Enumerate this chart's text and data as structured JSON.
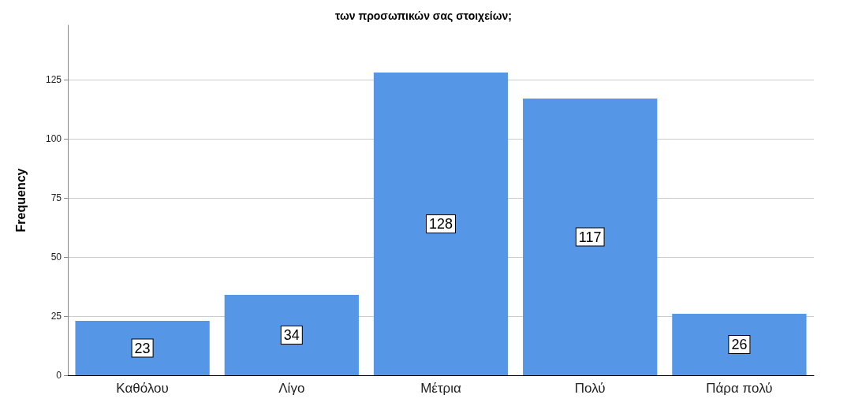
{
  "chart_data": {
    "type": "bar",
    "title": "των προσωπικών σας στοιχείων;",
    "ylabel": "Frequency",
    "categories": [
      "Καθόλου",
      "Λίγο",
      "Μέτρια",
      "Πολύ",
      "Πάρα πολύ"
    ],
    "values": [
      23,
      34,
      128,
      117,
      26
    ],
    "color": "#5596e6",
    "ylim": [
      0,
      148
    ],
    "yticks": [
      0,
      25,
      50,
      75,
      100,
      125
    ],
    "grid": "y",
    "data_labels": true
  }
}
